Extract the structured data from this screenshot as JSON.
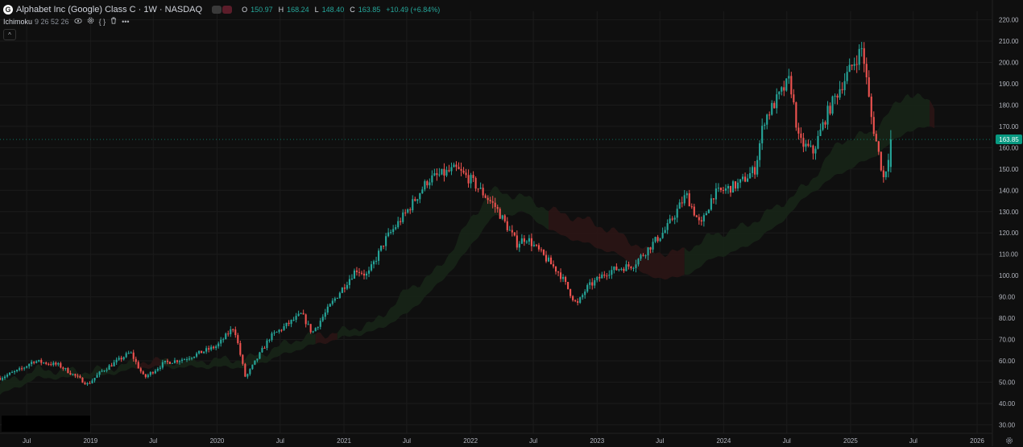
{
  "header": {
    "logo": "G",
    "title": "Alphabet Inc (Google) Class C · 1W · NASDAQ",
    "ohlc": [
      {
        "label": "O",
        "value": "150.97"
      },
      {
        "label": "H",
        "value": "168.24"
      },
      {
        "label": "L",
        "value": "148.40"
      },
      {
        "label": "C",
        "value": "163.85"
      }
    ],
    "change": "+10.49 (+6.84%)"
  },
  "indicator": {
    "name": "Ichimoku",
    "params": "9 26 52 26",
    "icons": [
      "eye-icon",
      "gear-icon",
      "braces-icon",
      "trash-icon",
      "more-icon"
    ]
  },
  "last_price_tag": "163.85",
  "colors": {
    "background": "#0f0f0f",
    "up": "#26a69a",
    "down": "#ef5350",
    "cloud_bull": "#172417",
    "cloud_bear": "#2a1515",
    "grid": "#1b1b1b",
    "axis_text": "#b2b5be",
    "price_tag": "#089981"
  },
  "chart_data": {
    "type": "candlestick",
    "symbol": "Alphabet Inc (Google) Class C",
    "interval": "1W",
    "exchange": "NASDAQ",
    "x_axis": {
      "range": [
        "2018-04-15",
        "2026-02-14"
      ],
      "ticks": [
        {
          "label": "Jul",
          "date": "2018-07-01"
        },
        {
          "label": "2019",
          "date": "2019-01-01"
        },
        {
          "label": "Jul",
          "date": "2019-07-01"
        },
        {
          "label": "2020",
          "date": "2020-01-01"
        },
        {
          "label": "Jul",
          "date": "2020-07-01"
        },
        {
          "label": "2021",
          "date": "2021-01-01"
        },
        {
          "label": "Jul",
          "date": "2021-07-01"
        },
        {
          "label": "2022",
          "date": "2022-01-01"
        },
        {
          "label": "Jul",
          "date": "2022-07-01"
        },
        {
          "label": "2023",
          "date": "2023-01-01"
        },
        {
          "label": "Jul",
          "date": "2023-07-01"
        },
        {
          "label": "2024",
          "date": "2024-01-01"
        },
        {
          "label": "Jul",
          "date": "2024-07-01"
        },
        {
          "label": "2025",
          "date": "2025-01-01"
        },
        {
          "label": "Jul",
          "date": "2025-07-01"
        },
        {
          "label": "2026",
          "date": "2026-01-01"
        }
      ]
    },
    "y_axis": {
      "range": [
        26,
        224
      ],
      "ticks": [
        "220.00",
        "210.00",
        "200.00",
        "190.00",
        "180.00",
        "170.00",
        "160.00",
        "150.00",
        "140.00",
        "130.00",
        "120.00",
        "110.00",
        "100.00",
        "90.00",
        "80.00",
        "70.00",
        "60.00",
        "50.00",
        "40.00",
        "30.00"
      ]
    },
    "price_path": [
      [
        "2018-04-15",
        52
      ],
      [
        "2018-06-15",
        56
      ],
      [
        "2018-07-20",
        60
      ],
      [
        "2018-10-01",
        58
      ],
      [
        "2018-12-24",
        49
      ],
      [
        "2019-02-01",
        55
      ],
      [
        "2019-04-26",
        64
      ],
      [
        "2019-06-05",
        52
      ],
      [
        "2019-08-01",
        59
      ],
      [
        "2019-10-01",
        61
      ],
      [
        "2020-01-01",
        67
      ],
      [
        "2020-02-19",
        76
      ],
      [
        "2020-03-23",
        52
      ],
      [
        "2020-06-01",
        71
      ],
      [
        "2020-09-01",
        82
      ],
      [
        "2020-10-01",
        73
      ],
      [
        "2020-12-01",
        88
      ],
      [
        "2021-02-05",
        103
      ],
      [
        "2021-03-10",
        100
      ],
      [
        "2021-05-01",
        117
      ],
      [
        "2021-07-01",
        130
      ],
      [
        "2021-09-01",
        145
      ],
      [
        "2021-11-19",
        150
      ],
      [
        "2022-01-01",
        145
      ],
      [
        "2022-03-15",
        132
      ],
      [
        "2022-05-15",
        115
      ],
      [
        "2022-06-10",
        118
      ],
      [
        "2022-09-15",
        101
      ],
      [
        "2022-11-04",
        86
      ],
      [
        "2022-12-01",
        94
      ],
      [
        "2023-02-01",
        102
      ],
      [
        "2023-04-15",
        105
      ],
      [
        "2023-07-20",
        122
      ],
      [
        "2023-09-15",
        138
      ],
      [
        "2023-10-27",
        123
      ],
      [
        "2023-12-01",
        138
      ],
      [
        "2024-02-15",
        143
      ],
      [
        "2024-04-01",
        150
      ],
      [
        "2024-04-26",
        173
      ],
      [
        "2024-07-10",
        192
      ],
      [
        "2024-08-05",
        163
      ],
      [
        "2024-09-15",
        158
      ],
      [
        "2024-10-25",
        176
      ],
      [
        "2024-12-01",
        188
      ],
      [
        "2025-02-04",
        207
      ],
      [
        "2025-03-01",
        175
      ],
      [
        "2025-04-07",
        145
      ],
      [
        "2025-04-28",
        163.85
      ]
    ],
    "last_candle": {
      "open": 150.97,
      "high": 168.24,
      "low": 148.4,
      "close": 163.85
    },
    "indicator": {
      "name": "Ichimoku",
      "params": [
        9,
        26,
        52,
        26
      ],
      "cloud_path": [
        [
          "2018-04-15",
          44,
          49
        ],
        [
          "2018-08-01",
          52,
          56
        ],
        [
          "2019-01-01",
          52,
          55
        ],
        [
          "2019-06-01",
          57,
          60
        ],
        [
          "2019-11-01",
          57,
          60
        ],
        [
          "2020-04-01",
          57,
          61
        ],
        [
          "2020-09-01",
          66,
          71
        ],
        [
          "2021-01-01",
          71,
          74
        ],
        [
          "2021-04-01",
          74,
          78
        ],
        [
          "2021-07-01",
          82,
          93
        ],
        [
          "2021-10-01",
          96,
          103
        ],
        [
          "2021-12-15",
          110,
          122
        ],
        [
          "2022-03-01",
          127,
          140
        ],
        [
          "2022-06-01",
          130,
          137
        ],
        [
          "2022-09-01",
          120,
          130
        ],
        [
          "2022-12-01",
          115,
          126
        ],
        [
          "2023-03-01",
          110,
          120
        ],
        [
          "2023-06-01",
          99,
          111
        ],
        [
          "2023-09-01",
          99,
          111
        ],
        [
          "2023-12-01",
          108,
          119
        ],
        [
          "2024-03-01",
          113,
          123
        ],
        [
          "2024-06-01",
          123,
          132
        ],
        [
          "2024-09-01",
          138,
          143
        ],
        [
          "2024-12-01",
          148,
          163
        ],
        [
          "2025-03-01",
          155,
          167
        ],
        [
          "2025-06-15",
          168,
          186
        ],
        [
          "2025-09-01",
          170,
          180
        ]
      ]
    }
  }
}
